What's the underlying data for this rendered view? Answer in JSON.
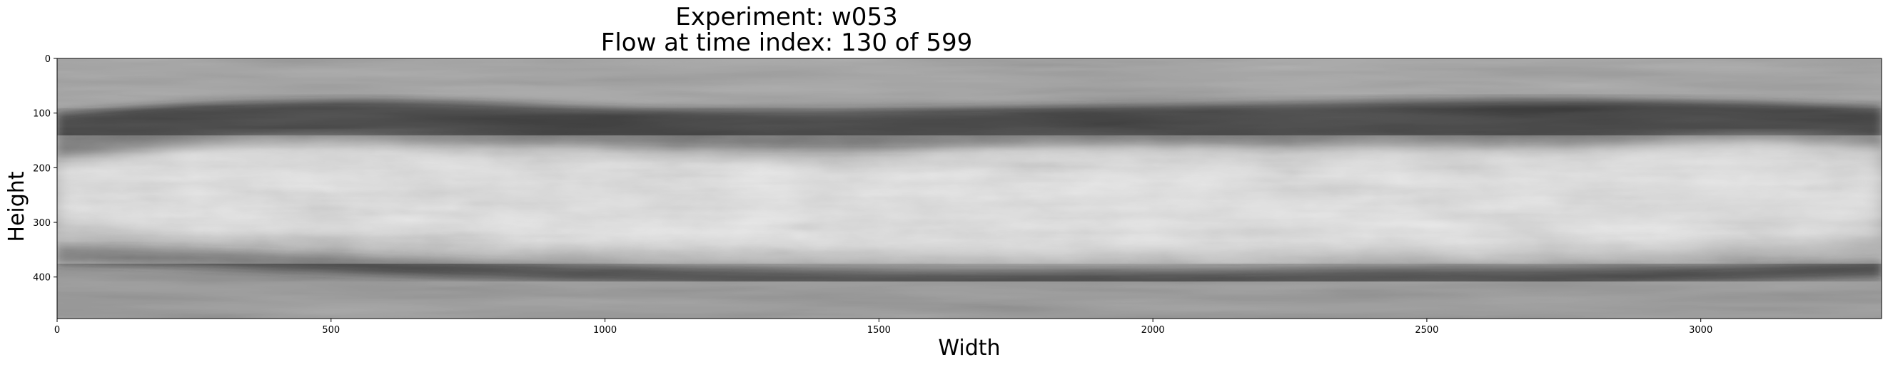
{
  "figure": {
    "title_line1": "Experiment: w053",
    "title_line2": "Flow at time index: 130 of 599",
    "xlabel": "Width",
    "ylabel": "Height"
  },
  "image": {
    "description": "grayscale turbulent flow field",
    "data_width": 3330,
    "data_height": 476,
    "colormap": "gray"
  },
  "axes": {
    "xticks": [
      0,
      500,
      1000,
      1500,
      2000,
      2500,
      3000
    ],
    "yticks": [
      0,
      100,
      200,
      300,
      400
    ],
    "xlim": [
      0,
      3330
    ],
    "ylim": [
      0,
      476
    ]
  }
}
